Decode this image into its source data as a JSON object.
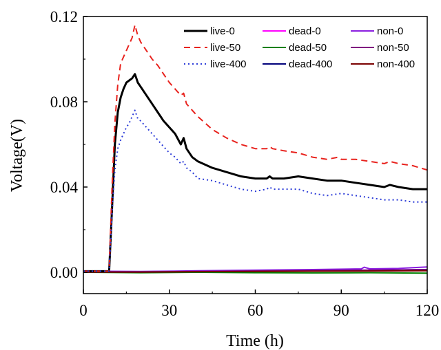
{
  "chart_data": {
    "type": "line",
    "title": "",
    "xlabel": "Time (h)",
    "ylabel": "Voltage(V)",
    "xlim": [
      0,
      120
    ],
    "ylim": [
      -0.01,
      0.12
    ],
    "xticks": [
      0,
      30,
      60,
      90,
      120
    ],
    "yticks": [
      0.0,
      0.04,
      0.08,
      0.12
    ],
    "xtick_labels": [
      "0",
      "30",
      "60",
      "90",
      "120"
    ],
    "ytick_labels": [
      "0.00",
      "0.04",
      "0.08",
      "0.12"
    ],
    "grid": false,
    "legend": "top-right",
    "series": [
      {
        "name": "live-0",
        "color": "#000000",
        "dash": "solid",
        "width": 3,
        "points": [
          [
            0,
            0.0005
          ],
          [
            9,
            0.0005
          ],
          [
            10,
            0.03
          ],
          [
            11,
            0.06
          ],
          [
            12,
            0.075
          ],
          [
            13,
            0.082
          ],
          [
            14,
            0.086
          ],
          [
            15,
            0.089
          ],
          [
            16,
            0.09
          ],
          [
            17,
            0.091
          ],
          [
            18,
            0.093
          ],
          [
            19,
            0.089
          ],
          [
            20,
            0.087
          ],
          [
            22,
            0.083
          ],
          [
            24,
            0.079
          ],
          [
            26,
            0.075
          ],
          [
            28,
            0.071
          ],
          [
            30,
            0.068
          ],
          [
            32,
            0.065
          ],
          [
            34,
            0.06
          ],
          [
            35,
            0.063
          ],
          [
            36,
            0.058
          ],
          [
            38,
            0.054
          ],
          [
            40,
            0.052
          ],
          [
            45,
            0.049
          ],
          [
            50,
            0.047
          ],
          [
            55,
            0.045
          ],
          [
            60,
            0.044
          ],
          [
            64,
            0.044
          ],
          [
            65,
            0.045
          ],
          [
            66,
            0.044
          ],
          [
            70,
            0.044
          ],
          [
            75,
            0.045
          ],
          [
            80,
            0.044
          ],
          [
            85,
            0.043
          ],
          [
            90,
            0.043
          ],
          [
            95,
            0.042
          ],
          [
            100,
            0.041
          ],
          [
            105,
            0.04
          ],
          [
            107,
            0.041
          ],
          [
            110,
            0.04
          ],
          [
            115,
            0.039
          ],
          [
            120,
            0.039
          ]
        ]
      },
      {
        "name": "live-50",
        "color": "#e8231e",
        "dash": "dashed",
        "width": 2,
        "points": [
          [
            0,
            0.0005
          ],
          [
            9,
            0.0005
          ],
          [
            10,
            0.04
          ],
          [
            11,
            0.07
          ],
          [
            12,
            0.088
          ],
          [
            13,
            0.098
          ],
          [
            14,
            0.101
          ],
          [
            15,
            0.104
          ],
          [
            16,
            0.107
          ],
          [
            17,
            0.11
          ],
          [
            18,
            0.116
          ],
          [
            19,
            0.111
          ],
          [
            20,
            0.108
          ],
          [
            22,
            0.104
          ],
          [
            24,
            0.1
          ],
          [
            26,
            0.097
          ],
          [
            28,
            0.093
          ],
          [
            30,
            0.089
          ],
          [
            32,
            0.086
          ],
          [
            34,
            0.083
          ],
          [
            35,
            0.084
          ],
          [
            36,
            0.079
          ],
          [
            38,
            0.076
          ],
          [
            40,
            0.073
          ],
          [
            45,
            0.067
          ],
          [
            50,
            0.063
          ],
          [
            55,
            0.06
          ],
          [
            60,
            0.058
          ],
          [
            64,
            0.058
          ],
          [
            65,
            0.059
          ],
          [
            66,
            0.058
          ],
          [
            70,
            0.057
          ],
          [
            75,
            0.056
          ],
          [
            80,
            0.054
          ],
          [
            85,
            0.053
          ],
          [
            89,
            0.054
          ],
          [
            90,
            0.053
          ],
          [
            95,
            0.053
          ],
          [
            100,
            0.052
          ],
          [
            105,
            0.051
          ],
          [
            107,
            0.052
          ],
          [
            110,
            0.051
          ],
          [
            115,
            0.05
          ],
          [
            120,
            0.048
          ]
        ]
      },
      {
        "name": "live-400",
        "color": "#2b3bd8",
        "dash": "dotted",
        "width": 2,
        "points": [
          [
            0,
            0.0005
          ],
          [
            9,
            0.0005
          ],
          [
            10,
            0.028
          ],
          [
            11,
            0.048
          ],
          [
            12,
            0.058
          ],
          [
            13,
            0.062
          ],
          [
            14,
            0.065
          ],
          [
            15,
            0.068
          ],
          [
            16,
            0.07
          ],
          [
            17,
            0.073
          ],
          [
            18,
            0.076
          ],
          [
            19,
            0.072
          ],
          [
            20,
            0.071
          ],
          [
            22,
            0.068
          ],
          [
            24,
            0.065
          ],
          [
            26,
            0.062
          ],
          [
            28,
            0.059
          ],
          [
            30,
            0.056
          ],
          [
            32,
            0.054
          ],
          [
            34,
            0.051
          ],
          [
            35,
            0.052
          ],
          [
            36,
            0.049
          ],
          [
            38,
            0.047
          ],
          [
            40,
            0.044
          ],
          [
            45,
            0.043
          ],
          [
            50,
            0.041
          ],
          [
            55,
            0.039
          ],
          [
            60,
            0.038
          ],
          [
            64,
            0.039
          ],
          [
            65,
            0.04
          ],
          [
            66,
            0.039
          ],
          [
            70,
            0.039
          ],
          [
            75,
            0.039
          ],
          [
            80,
            0.037
          ],
          [
            85,
            0.036
          ],
          [
            90,
            0.037
          ],
          [
            95,
            0.036
          ],
          [
            100,
            0.035
          ],
          [
            105,
            0.034
          ],
          [
            107,
            0.034
          ],
          [
            110,
            0.034
          ],
          [
            115,
            0.033
          ],
          [
            120,
            0.033
          ]
        ]
      },
      {
        "name": "dead-0",
        "color": "#ff00ff",
        "dash": "solid",
        "width": 2,
        "points": [
          [
            0,
            0.0003
          ],
          [
            20,
            0.0003
          ],
          [
            40,
            0.0005
          ],
          [
            60,
            0.0006
          ],
          [
            80,
            0.0008
          ],
          [
            100,
            0.001
          ],
          [
            120,
            0.0012
          ]
        ]
      },
      {
        "name": "dead-50",
        "color": "#008000",
        "dash": "solid",
        "width": 2,
        "points": [
          [
            0,
            0.0
          ],
          [
            20,
            -0.0002
          ],
          [
            40,
            0.0
          ],
          [
            60,
            -0.0002
          ],
          [
            80,
            -0.0003
          ],
          [
            100,
            -0.0002
          ],
          [
            120,
            -0.0004
          ]
        ]
      },
      {
        "name": "dead-400",
        "color": "#00007a",
        "dash": "solid",
        "width": 2,
        "points": [
          [
            0,
            0.0004
          ],
          [
            20,
            0.0003
          ],
          [
            40,
            0.0005
          ],
          [
            60,
            0.0006
          ],
          [
            80,
            0.0008
          ],
          [
            100,
            0.001
          ],
          [
            120,
            0.0013
          ]
        ]
      },
      {
        "name": "non-0",
        "color": "#8a1ee0",
        "dash": "solid",
        "width": 2,
        "points": [
          [
            0,
            0.0005
          ],
          [
            20,
            0.0004
          ],
          [
            40,
            0.0007
          ],
          [
            60,
            0.001
          ],
          [
            80,
            0.0013
          ],
          [
            97,
            0.0016
          ],
          [
            98,
            0.0024
          ],
          [
            100,
            0.0016
          ],
          [
            110,
            0.0018
          ],
          [
            115,
            0.0022
          ],
          [
            120,
            0.0025
          ]
        ]
      },
      {
        "name": "non-50",
        "color": "#800080",
        "dash": "solid",
        "width": 2,
        "points": [
          [
            0,
            0.0002
          ],
          [
            20,
            0.0002
          ],
          [
            40,
            0.0004
          ],
          [
            60,
            0.0006
          ],
          [
            80,
            0.0008
          ],
          [
            100,
            0.001
          ],
          [
            120,
            0.0012
          ]
        ]
      },
      {
        "name": "non-400",
        "color": "#7a0000",
        "dash": "solid",
        "width": 2,
        "points": [
          [
            0,
            0.0001
          ],
          [
            20,
            0.0001
          ],
          [
            40,
            0.0003
          ],
          [
            60,
            0.0004
          ],
          [
            80,
            0.0005
          ],
          [
            100,
            0.0006
          ],
          [
            120,
            0.0007
          ]
        ]
      }
    ]
  }
}
